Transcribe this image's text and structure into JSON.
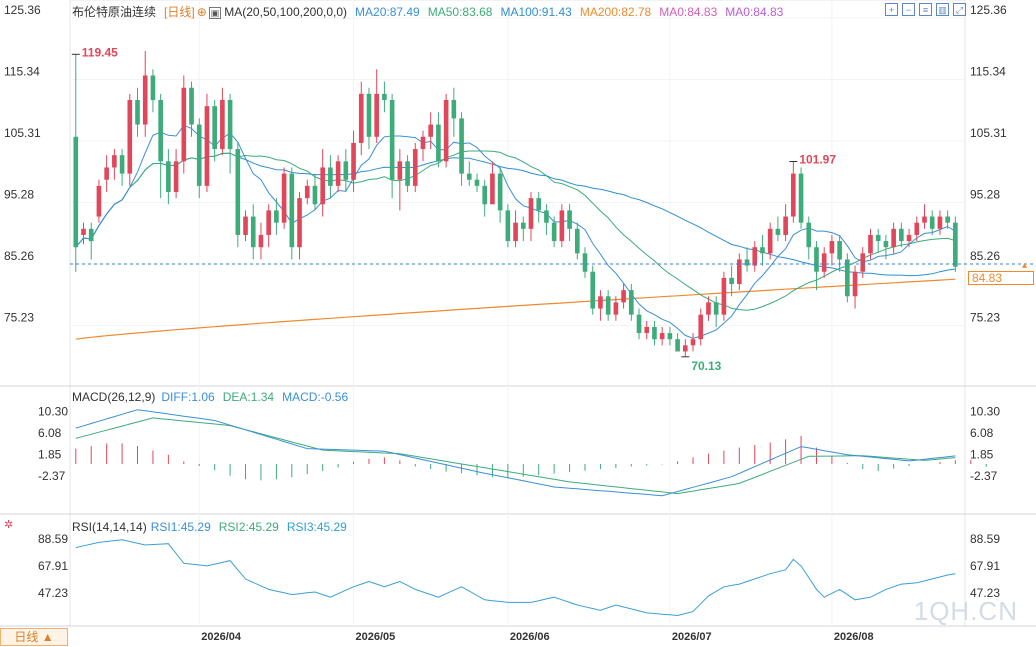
{
  "header": {
    "title": "布伦特原油连续",
    "period": "[日线]",
    "ma_legend": "MA(20,50,100,200,0,0)",
    "ma_values": [
      {
        "label": "MA20:87.49",
        "color": "#3a8fd8"
      },
      {
        "label": "MA50:83.68",
        "color": "#3dab7a"
      },
      {
        "label": "MA100:91.43",
        "color": "#2f8fd0"
      },
      {
        "label": "MA200:82.78",
        "color": "#f08a30"
      },
      {
        "label": "MA0:84.83",
        "color": "#d35fb6"
      },
      {
        "label": "MA0:84.83",
        "color": "#b85fd3"
      }
    ]
  },
  "macd_header": {
    "label": "MACD(26,12,9)",
    "diff": "DIFF:1.06",
    "dea": "DEA:1.34",
    "macd": "MACD:-0.56"
  },
  "rsi_header": {
    "label": "RSI(14,14,14)",
    "rsi1": "RSI1:45.29",
    "rsi2": "RSI2:45.29",
    "rsi3": "RSI3:45.29"
  },
  "price_tag": "84.83",
  "period_button": "日线 ▲",
  "watermark": "1QH.CN",
  "toolbar_icons": [
    "zoom-in-icon",
    "zoom-out-icon",
    "indicator-icon",
    "layout-icon",
    "fullscreen-icon"
  ],
  "colors": {
    "up": "#e0475a",
    "down": "#3dab7a",
    "ma20": "#3a8fd8",
    "ma50": "#3dab7a",
    "ma100": "#2f8fd0",
    "ma200": "#f08a30",
    "rsi": "#3a9fd8",
    "last": "#3a7fd8"
  },
  "chart_data": [
    {
      "type": "candlestick",
      "name": "price",
      "yticks": [
        125.36,
        115.34,
        105.31,
        95.28,
        85.26,
        75.23
      ],
      "ylim": [
        67,
        127
      ],
      "xtick_labels": [
        "2026/04",
        "2026/05",
        "2026/06",
        "2026/07",
        "2026/08"
      ],
      "xtick_index": [
        16,
        36,
        56,
        77,
        98
      ],
      "annotations": [
        {
          "label": "119.45",
          "index": 0,
          "value": 119.45,
          "kind": "high"
        },
        {
          "label": "70.13",
          "index": 79,
          "value": 70.13,
          "kind": "low"
        },
        {
          "label": "101.97",
          "index": 93,
          "value": 101.97,
          "kind": "high"
        }
      ],
      "last_price": 84.83,
      "dashed_price": 85.26,
      "candles": [
        [
          106,
          88,
          119.45,
          84
        ],
        [
          90,
          91,
          92,
          88.5
        ],
        [
          91,
          89,
          92,
          86
        ],
        [
          93,
          98,
          99,
          92
        ],
        [
          99,
          101,
          103,
          97
        ],
        [
          101,
          103,
          104,
          99
        ],
        [
          103,
          100,
          104,
          98
        ],
        [
          100,
          112,
          113,
          98
        ],
        [
          112,
          108,
          114,
          106
        ],
        [
          108,
          116,
          120,
          106
        ],
        [
          116,
          112,
          117,
          110
        ],
        [
          112,
          102,
          113,
          96
        ],
        [
          102,
          97,
          104,
          95
        ],
        [
          97,
          102,
          104,
          96
        ],
        [
          102,
          114,
          116,
          100
        ],
        [
          114,
          108,
          115,
          106
        ],
        [
          108,
          98,
          109,
          96
        ],
        [
          98,
          111,
          113,
          97
        ],
        [
          111,
          104,
          112,
          102
        ],
        [
          104,
          112,
          114,
          103
        ],
        [
          112,
          104,
          113,
          100
        ],
        [
          104,
          90,
          105,
          88
        ],
        [
          90,
          93,
          94,
          89
        ],
        [
          93,
          88,
          95,
          86
        ],
        [
          88,
          90,
          92,
          86
        ],
        [
          90,
          94,
          95,
          88
        ],
        [
          94,
          92,
          96,
          90
        ],
        [
          92,
          100,
          101,
          91
        ],
        [
          100,
          88,
          101,
          86
        ],
        [
          88,
          96,
          97,
          86
        ],
        [
          96,
          98,
          99,
          95
        ],
        [
          98,
          95,
          100,
          94
        ],
        [
          95,
          101,
          104,
          93
        ],
        [
          101,
          98,
          103,
          96
        ],
        [
          98,
          102,
          103,
          97
        ],
        [
          102,
          99,
          104,
          97
        ],
        [
          99,
          105,
          107,
          97
        ],
        [
          105,
          113,
          115,
          103
        ],
        [
          113,
          106,
          114,
          104
        ],
        [
          106,
          113,
          117,
          105
        ],
        [
          113,
          112,
          115,
          110
        ],
        [
          112,
          99,
          113,
          96
        ],
        [
          99,
          102,
          104,
          94
        ],
        [
          102,
          98,
          103,
          97
        ],
        [
          98,
          104,
          105,
          97
        ],
        [
          104,
          106,
          107,
          102
        ],
        [
          106,
          108,
          110,
          104
        ],
        [
          108,
          102,
          110,
          101
        ],
        [
          102,
          112,
          113,
          101
        ],
        [
          112,
          109,
          114,
          106
        ],
        [
          109,
          100,
          110,
          98
        ],
        [
          100,
          99,
          102,
          98
        ],
        [
          99,
          98,
          100,
          97
        ],
        [
          98,
          95,
          99,
          93
        ],
        [
          95,
          100,
          102,
          95
        ],
        [
          100,
          94,
          101,
          92
        ],
        [
          94,
          89,
          95,
          88
        ],
        [
          89,
          92,
          94,
          88
        ],
        [
          92,
          91,
          93,
          89
        ],
        [
          91,
          96,
          97,
          89
        ],
        [
          96,
          94,
          97,
          92
        ],
        [
          94,
          92,
          95,
          90
        ],
        [
          92,
          89,
          93,
          88
        ],
        [
          89,
          94,
          95,
          88
        ],
        [
          94,
          91,
          95,
          89
        ],
        [
          91,
          87,
          92,
          86
        ],
        [
          87,
          84,
          88,
          83
        ],
        [
          84,
          78,
          85,
          77
        ],
        [
          78,
          80,
          81,
          76
        ],
        [
          80,
          77,
          81,
          76
        ],
        [
          77,
          79,
          80,
          76
        ],
        [
          79,
          81,
          82,
          78
        ],
        [
          81,
          77,
          82,
          76
        ],
        [
          77,
          74,
          78,
          73
        ],
        [
          74,
          75,
          76,
          73
        ],
        [
          75,
          73,
          76,
          72
        ],
        [
          73,
          74,
          75,
          72
        ],
        [
          74,
          73,
          75,
          72
        ],
        [
          73,
          71,
          74,
          71
        ],
        [
          71,
          72,
          73,
          70.13
        ],
        [
          72,
          73,
          74,
          71
        ],
        [
          73,
          77,
          78,
          72
        ],
        [
          77,
          79,
          80,
          76
        ],
        [
          79,
          77,
          80,
          75
        ],
        [
          77,
          83,
          84,
          76
        ],
        [
          83,
          82,
          85,
          80
        ],
        [
          82,
          86,
          87,
          81
        ],
        [
          86,
          85,
          88,
          84
        ],
        [
          85,
          88,
          89,
          84
        ],
        [
          88,
          87,
          90,
          85
        ],
        [
          87,
          91,
          92,
          86
        ],
        [
          91,
          90,
          93,
          89
        ],
        [
          90,
          93,
          95,
          89
        ],
        [
          93,
          100,
          101.97,
          92
        ],
        [
          100,
          92,
          101,
          91
        ],
        [
          92,
          88,
          93,
          86
        ],
        [
          88,
          84,
          89,
          81
        ],
        [
          84,
          87,
          88,
          83
        ],
        [
          87,
          89,
          90,
          85
        ],
        [
          89,
          86,
          90,
          84
        ],
        [
          86,
          80,
          87,
          79
        ],
        [
          80,
          84,
          85,
          78
        ],
        [
          84,
          87,
          88,
          83
        ],
        [
          87,
          90,
          91,
          86
        ],
        [
          90,
          89,
          91,
          87
        ],
        [
          89,
          88,
          90,
          86
        ],
        [
          88,
          91,
          92,
          87
        ],
        [
          91,
          89,
          92,
          88
        ],
        [
          89,
          90,
          91,
          88
        ],
        [
          90,
          92,
          93,
          89
        ],
        [
          92,
          93,
          95,
          91
        ],
        [
          93,
          91,
          94,
          90
        ],
        [
          91,
          93,
          94,
          90
        ],
        [
          93,
          92,
          94,
          91
        ],
        [
          92,
          84.83,
          93,
          84
        ]
      ]
    },
    {
      "type": "line",
      "name": "macd",
      "yticks": [
        10.3,
        6.08,
        1.85,
        -2.37
      ],
      "ylim": [
        -9,
        12.5
      ],
      "series": [
        {
          "name": "DIFF",
          "points": [
            [
              0,
              7
            ],
            [
              8,
              10.6
            ],
            [
              18,
              8.5
            ],
            [
              30,
              3
            ],
            [
              40,
              2.5
            ],
            [
              52,
              -1.5
            ],
            [
              62,
              -4.5
            ],
            [
              76,
              -6.2
            ],
            [
              85,
              -2.5
            ],
            [
              94,
              3.4
            ],
            [
              100,
              1.8
            ],
            [
              108,
              0.6
            ],
            [
              116,
              1.9
            ],
            [
              118,
              1.06
            ]
          ]
        },
        {
          "name": "DEA",
          "points": [
            [
              0,
              5
            ],
            [
              10,
              9
            ],
            [
              20,
              7.5
            ],
            [
              32,
              2.7
            ],
            [
              42,
              2
            ],
            [
              54,
              -1
            ],
            [
              64,
              -3.5
            ],
            [
              78,
              -5.8
            ],
            [
              86,
              -3.8
            ],
            [
              95,
              1.5
            ],
            [
              102,
              1.6
            ],
            [
              110,
              0.7
            ],
            [
              116,
              1.5
            ],
            [
              118,
              1.34
            ]
          ]
        }
      ],
      "bars": [
        [
          0,
          3
        ],
        [
          2,
          3.5
        ],
        [
          4,
          4
        ],
        [
          6,
          4
        ],
        [
          8,
          3.5
        ],
        [
          10,
          2.6
        ],
        [
          12,
          1.8
        ],
        [
          14,
          0.5
        ],
        [
          16,
          -0.4
        ],
        [
          18,
          -1.2
        ],
        [
          20,
          -2.3
        ],
        [
          22,
          -3
        ],
        [
          24,
          -3.2
        ],
        [
          26,
          -3
        ],
        [
          28,
          -2.6
        ],
        [
          30,
          -2
        ],
        [
          32,
          -1.4
        ],
        [
          34,
          -0.7
        ],
        [
          36,
          0.4
        ],
        [
          38,
          1
        ],
        [
          40,
          1.3
        ],
        [
          42,
          0.7
        ],
        [
          44,
          -0.5
        ],
        [
          46,
          -1
        ],
        [
          48,
          -1.5
        ],
        [
          50,
          -1.8
        ],
        [
          52,
          -2.2
        ],
        [
          54,
          -2.6
        ],
        [
          56,
          -2.8
        ],
        [
          58,
          -2.5
        ],
        [
          60,
          -2.2
        ],
        [
          62,
          -1.9
        ],
        [
          64,
          -1.6
        ],
        [
          66,
          -1.3
        ],
        [
          68,
          -1
        ],
        [
          70,
          -0.8
        ],
        [
          72,
          -0.5
        ],
        [
          74,
          -0.3
        ],
        [
          76,
          -0.1
        ],
        [
          78,
          0.5
        ],
        [
          80,
          1.3
        ],
        [
          82,
          2
        ],
        [
          84,
          2.6
        ],
        [
          86,
          3.2
        ],
        [
          88,
          3.7
        ],
        [
          90,
          4.2
        ],
        [
          92,
          4.8
        ],
        [
          94,
          5.5
        ],
        [
          96,
          3.2
        ],
        [
          98,
          1.5
        ],
        [
          100,
          0.2
        ],
        [
          102,
          -1
        ],
        [
          104,
          -1.4
        ],
        [
          106,
          -0.9
        ],
        [
          108,
          -0.4
        ],
        [
          110,
          0
        ],
        [
          112,
          0.4
        ],
        [
          114,
          0.7
        ],
        [
          116,
          0.8
        ],
        [
          118,
          -0.56
        ]
      ]
    },
    {
      "type": "line",
      "name": "rsi",
      "yticks": [
        88.59,
        67.91,
        47.23
      ],
      "ylim": [
        25,
        97
      ],
      "series": [
        {
          "name": "RSI1",
          "points": [
            [
              0,
              82
            ],
            [
              3,
              86
            ],
            [
              6,
              88
            ],
            [
              9,
              84
            ],
            [
              12,
              85
            ],
            [
              14,
              70
            ],
            [
              17,
              68
            ],
            [
              20,
              72
            ],
            [
              22,
              58
            ],
            [
              25,
              50
            ],
            [
              28,
              46
            ],
            [
              31,
              48
            ],
            [
              33,
              44
            ],
            [
              36,
              52
            ],
            [
              38,
              56
            ],
            [
              40,
              52
            ],
            [
              42,
              56
            ],
            [
              44,
              50
            ],
            [
              47,
              44
            ],
            [
              50,
              52
            ],
            [
              53,
              42
            ],
            [
              56,
              40
            ],
            [
              59,
              40
            ],
            [
              62,
              44
            ],
            [
              65,
              38
            ],
            [
              68,
              34
            ],
            [
              70,
              38
            ],
            [
              72,
              35
            ],
            [
              74,
              32
            ],
            [
              76,
              31
            ],
            [
              78,
              30
            ],
            [
              80,
              33
            ],
            [
              82,
              45
            ],
            [
              84,
              52
            ],
            [
              86,
              54
            ],
            [
              88,
              58
            ],
            [
              90,
              62
            ],
            [
              92,
              65
            ],
            [
              93,
              73
            ],
            [
              94,
              68
            ],
            [
              96,
              50
            ],
            [
              97,
              44
            ],
            [
              99,
              50
            ],
            [
              101,
              42
            ],
            [
              103,
              44
            ],
            [
              105,
              50
            ],
            [
              107,
              54
            ],
            [
              109,
              55
            ],
            [
              111,
              58
            ],
            [
              113,
              61
            ],
            [
              115,
              63
            ],
            [
              117,
              60
            ],
            [
              118,
              45.29
            ]
          ]
        }
      ]
    }
  ]
}
